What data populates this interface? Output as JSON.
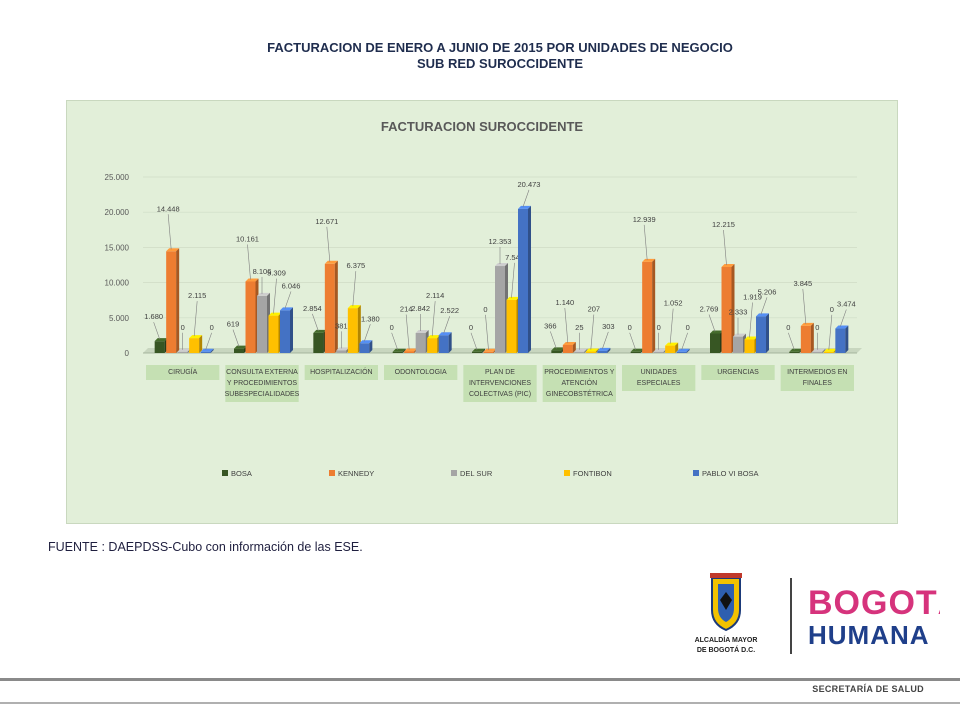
{
  "page": {
    "title_line_1": "FACTURACION DE ENERO A JUNIO DE 2015 POR UNIDADES DE NEGOCIO",
    "title_line_2": "SUB RED SUROCCIDENTE",
    "source_note": "FUENTE : DAEPDSS-Cubo con información de las ESE."
  },
  "logo": {
    "alcaldia_line_1": "ALCALDÍA MAYOR",
    "alcaldia_line_2": "DE BOGOTÁ D.C.",
    "bogota": "BOGOTÁ",
    "humana": "HUMANA"
  },
  "footer": {
    "text": "SECRETARÍA DE SALUD"
  },
  "chart_data": {
    "type": "bar",
    "title": "FACTURACION SUROCCIDENTE",
    "categories": [
      [
        "CIRUGÍA"
      ],
      [
        "CONSULTA EXTERNA",
        "Y PROCEDIMIENTOS",
        "SUBESPECIALIDADES"
      ],
      [
        "HOSPITALIZACIÓN"
      ],
      [
        "ODONTOLOGIA"
      ],
      [
        "PLAN DE",
        "INTERVENCIONES",
        "COLECTIVAS (PIC)"
      ],
      [
        "PROCEDIMIENTOS Y",
        "ATENCIÓN",
        "GINECOBSTÉTRICA"
      ],
      [
        "UNIDADES",
        "ESPECIALES"
      ],
      [
        "URGENCIAS"
      ],
      [
        "INTERMEDIOS EN",
        "FINALES"
      ]
    ],
    "series": [
      {
        "name": "BOSA",
        "color": "#375623",
        "values": [
          1680,
          619,
          2854,
          0,
          0,
          366,
          0,
          2769,
          0
        ],
        "labels": [
          "1.680",
          "619",
          "2.854",
          "0",
          "0",
          "366",
          "0",
          "2.769",
          "0"
        ]
      },
      {
        "name": "KENNEDY",
        "color": "#ed7d31",
        "values": [
          14448,
          10161,
          12671,
          214,
          0,
          1140,
          12939,
          12215,
          3845
        ],
        "labels": [
          "14.448",
          "10.161",
          "12.671",
          "214",
          "0",
          "1.140",
          "12.939",
          "12.215",
          "3.845"
        ]
      },
      {
        "name": "DEL SUR",
        "color": "#a5a5a5",
        "values": [
          0,
          8106,
          381,
          2842,
          12353,
          25,
          0,
          2333,
          0
        ],
        "labels": [
          "0",
          "8.106",
          "381",
          "2.842",
          "12.353",
          "25",
          "0",
          "2.333",
          "0"
        ]
      },
      {
        "name": "FONTIBON",
        "color": "#ffc000",
        "values": [
          2115,
          5309,
          6375,
          2114,
          7548,
          207,
          1052,
          1919,
          0
        ],
        "labels": [
          "2.115",
          "5.309",
          "6.375",
          "2.114",
          "7.548",
          "207",
          "1.052",
          "1.919",
          "0"
        ]
      },
      {
        "name": "PABLO VI BOSA",
        "color": "#4472c4",
        "values": [
          0,
          6046,
          1380,
          2522,
          20473,
          303,
          0,
          5206,
          3474
        ],
        "labels": [
          "0",
          "6.046",
          "1.380",
          "2.522",
          "20.473",
          "303",
          "0",
          "5.206",
          "3.474"
        ]
      }
    ],
    "y_ticks": [
      0,
      5000,
      10000,
      15000,
      20000,
      25000
    ],
    "y_tick_labels": [
      "0",
      "5.000",
      "10.000",
      "15.000",
      "20.000",
      "25.000"
    ],
    "ylim": [
      0,
      25000
    ],
    "legend_position": "bottom",
    "colors": {
      "plot_background": "#e2efd9",
      "category_label_background": "#c5e0b3"
    }
  }
}
